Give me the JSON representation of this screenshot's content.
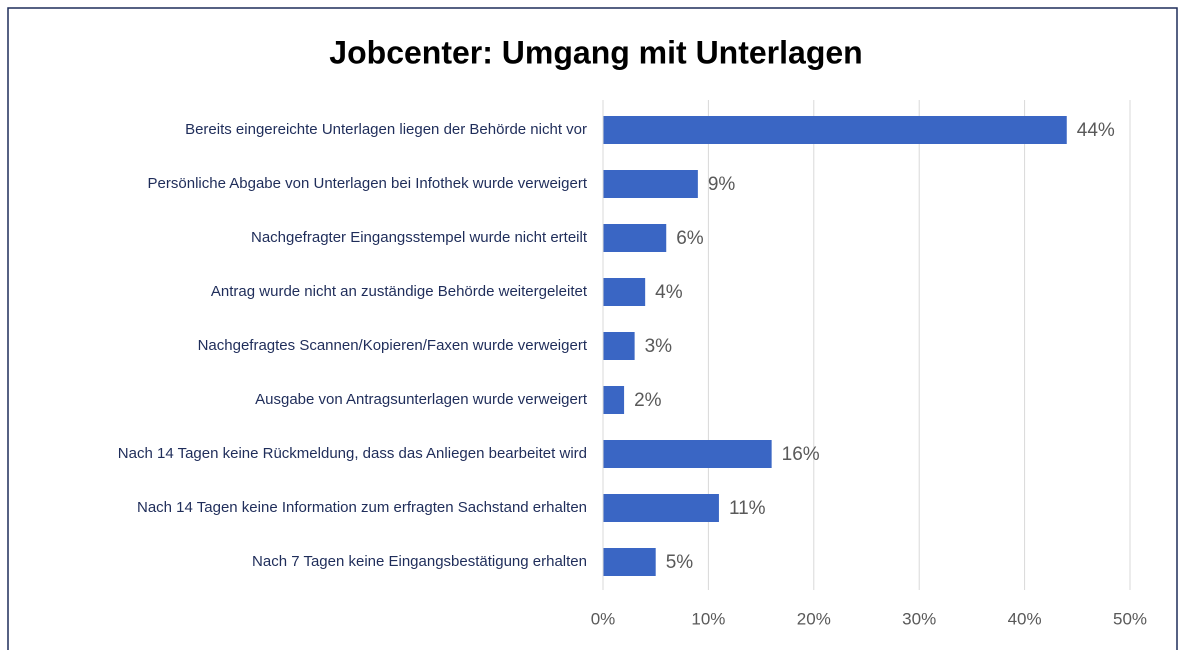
{
  "chart_data": {
    "type": "bar",
    "orientation": "horizontal",
    "title": "Jobcenter: Umgang mit Unterlagen",
    "categories": [
      "Bereits eingereichte Unterlagen liegen der Behörde nicht vor",
      "Persönliche Abgabe von Unterlagen bei Infothek wurde verweigert",
      "Nachgefragter Eingangsstempel wurde nicht erteilt",
      "Antrag wurde nicht an zuständige Behörde weitergeleitet",
      "Nachgefragtes Scannen/Kopieren/Faxen wurde verweigert",
      "Ausgabe von Antragsunterlagen wurde verweigert",
      "Nach 14 Tagen keine Rückmeldung, dass das Anliegen bearbeitet wird",
      "Nach 14 Tagen keine Information zum erfragten Sachstand erhalten",
      "Nach 7 Tagen keine Eingangsbestätigung erhalten"
    ],
    "values": [
      44,
      9,
      6,
      4,
      3,
      2,
      16,
      11,
      5
    ],
    "value_labels": [
      "44%",
      "9%",
      "6%",
      "4%",
      "3%",
      "2%",
      "16%",
      "11%",
      "5%"
    ],
    "color": "#3a66c4",
    "xlim": [
      0,
      50
    ],
    "xticks": [
      {
        "value": 0,
        "label": "0%"
      },
      {
        "value": 10,
        "label": "10%"
      },
      {
        "value": 20,
        "label": "20%"
      },
      {
        "value": 30,
        "label": "30%"
      },
      {
        "value": 40,
        "label": "40%"
      },
      {
        "value": 50,
        "label": "50%"
      }
    ],
    "grid": true
  }
}
